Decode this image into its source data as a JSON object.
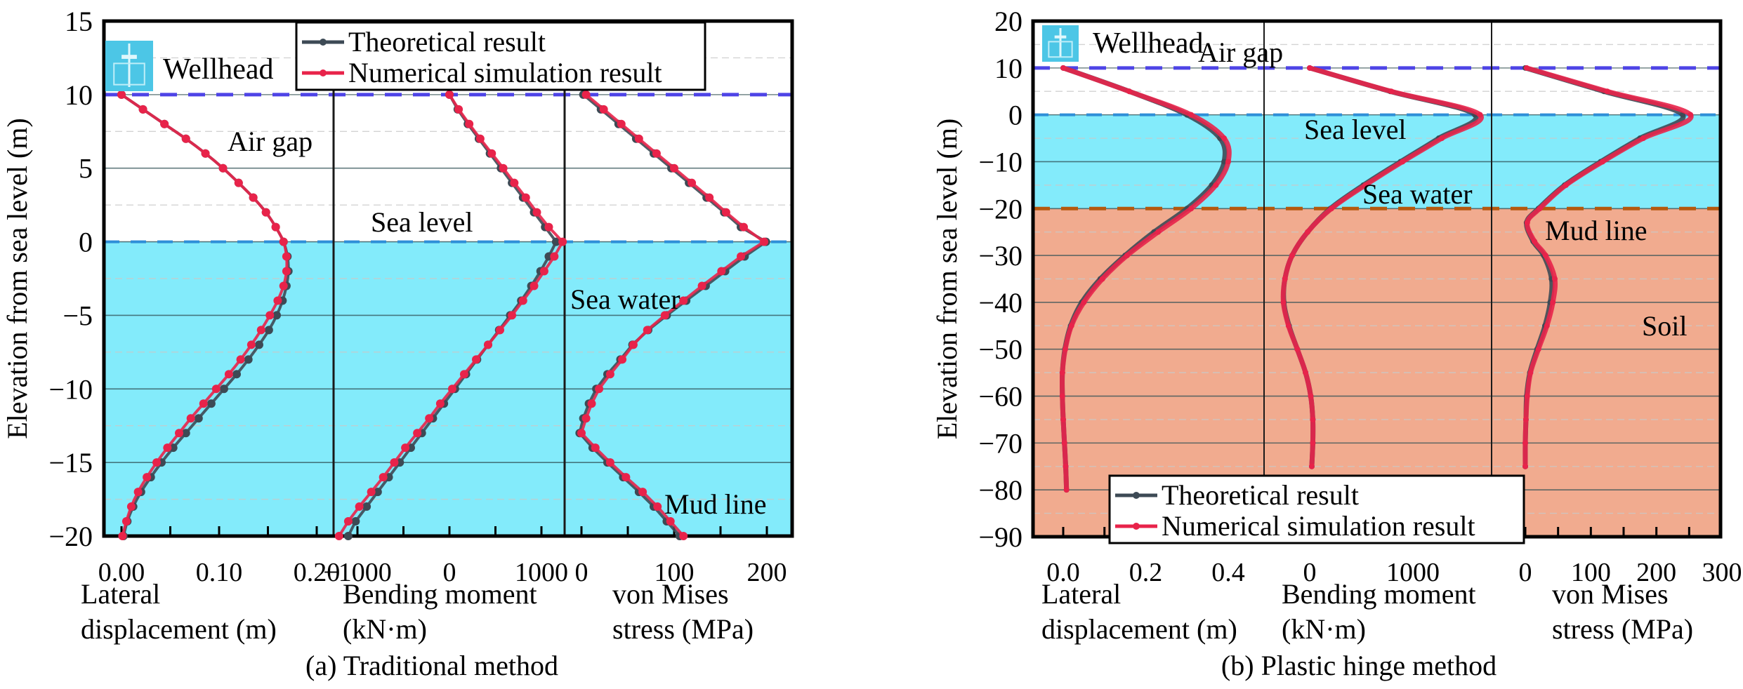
{
  "figure": {
    "y_axis_title": "Elevation from sea level (m)"
  },
  "chart_data": [
    {
      "type": "line",
      "id": "a",
      "caption": "(a) Traditional method",
      "ylabel": "Elevation from sea level (m)",
      "ylim": [
        -20,
        15
      ],
      "yticks": [
        15,
        10,
        5,
        0,
        -5,
        -10,
        -15,
        -20
      ],
      "ytick_labels": [
        "15",
        "10",
        "5",
        "0",
        "−5",
        "−10",
        "−15",
        "−20"
      ],
      "grid": true,
      "zones": {
        "wellhead_elevation": 10,
        "sea_level": 0,
        "mud_line": -20
      },
      "annotations": [
        "Wellhead",
        "Air gap",
        "Sea level",
        "Sea water",
        "Mud line"
      ],
      "legend": {
        "placement": "top-center",
        "entries": [
          "Theoretical result",
          "Numerical simulation result"
        ]
      },
      "subplots": [
        {
          "name": "lateral-displacement",
          "xlabel_line1": "Lateral",
          "xlabel_line2": "displacement (m)",
          "xlim": [
            -0.01,
            0.22
          ],
          "xticks": [
            0.0,
            0.1,
            0.2
          ],
          "xtick_labels": [
            "0.00",
            "0.10",
            "0.20"
          ],
          "y": [
            10,
            9,
            8,
            7,
            6,
            5,
            4,
            3,
            2,
            1,
            0,
            -1,
            -2,
            -3,
            -4,
            -5,
            -6,
            -7,
            -8,
            -9,
            -10,
            -11,
            -12,
            -13,
            -14,
            -15,
            -16,
            -17,
            -18,
            -19,
            -20
          ],
          "series": [
            {
              "name": "Theoretical result",
              "values": [
                0.0,
                0.022,
                0.044,
                0.066,
                0.086,
                0.104,
                0.12,
                0.135,
                0.148,
                0.158,
                0.166,
                0.17,
                0.171,
                0.169,
                0.165,
                0.159,
                0.151,
                0.141,
                0.13,
                0.118,
                0.105,
                0.092,
                0.079,
                0.066,
                0.053,
                0.041,
                0.03,
                0.02,
                0.012,
                0.006,
                0.002
              ]
            },
            {
              "name": "Numerical simulation result",
              "values": [
                0.0,
                0.022,
                0.044,
                0.066,
                0.086,
                0.104,
                0.12,
                0.135,
                0.148,
                0.158,
                0.166,
                0.169,
                0.169,
                0.166,
                0.16,
                0.152,
                0.143,
                0.133,
                0.122,
                0.11,
                0.097,
                0.084,
                0.071,
                0.059,
                0.047,
                0.036,
                0.026,
                0.017,
                0.01,
                0.005,
                0.001
              ]
            }
          ]
        },
        {
          "name": "bending-moment",
          "xlabel_line1": "Bending moment",
          "xlabel_line2": "(kN·m)",
          "xlim": [
            -1300,
            1500
          ],
          "xticks": [
            -1000,
            0,
            1000
          ],
          "xtick_labels": [
            "−1000",
            "0",
            "1000"
          ],
          "y": [
            10,
            9,
            8,
            7,
            6,
            5,
            4,
            3,
            2,
            1,
            0,
            -1,
            -2,
            -3,
            -4,
            -5,
            -6,
            -7,
            -8,
            -9,
            -10,
            -11,
            -12,
            -13,
            -14,
            -15,
            -16,
            -17,
            -18,
            -19,
            -20
          ],
          "series": [
            {
              "name": "Theoretical result",
              "values": [
                0,
                90,
                200,
                320,
                440,
                560,
                680,
                800,
                920,
                1040,
                1160,
                1080,
                990,
                890,
                780,
                660,
                540,
                420,
                300,
                180,
                60,
                -60,
                -180,
                -300,
                -420,
                -540,
                -660,
                -780,
                -900,
                -1020,
                -1100
              ]
            },
            {
              "name": "Numerical simulation result",
              "values": [
                0,
                100,
                215,
                335,
                460,
                585,
                705,
                830,
                950,
                1080,
                1230,
                1140,
                1030,
                920,
                800,
                680,
                550,
                420,
                290,
                160,
                30,
                -100,
                -220,
                -350,
                -480,
                -600,
                -720,
                -850,
                -980,
                -1100,
                -1200
              ]
            }
          ]
        },
        {
          "name": "von-mises-stress",
          "xlabel_line1": "von Mises",
          "xlabel_line2": "stress (MPa)",
          "xlim": [
            -5,
            225
          ],
          "xticks": [
            0,
            100,
            200
          ],
          "xtick_labels": [
            "0",
            "100",
            "200"
          ],
          "y": [
            10,
            9,
            8,
            7,
            6,
            5,
            4,
            3,
            2,
            1,
            0,
            -1,
            -2,
            -3,
            -4,
            -5,
            -6,
            -7,
            -8,
            -9,
            -10,
            -11,
            -12,
            -13,
            -14,
            -15,
            -16,
            -17,
            -18,
            -19,
            -20
          ],
          "series": [
            {
              "name": "Theoretical result",
              "values": [
                2,
                21,
                40,
                59,
                78,
                97,
                116,
                135,
                154,
                172,
                199,
                176,
                155,
                134,
                113,
                92,
                72,
                55,
                42,
                28,
                16,
                8,
                2,
                -2,
                12,
                28,
                45,
                62,
                78,
                92,
                106
              ]
            },
            {
              "name": "Numerical simulation result",
              "values": [
                5,
                24,
                43,
                62,
                81,
                100,
                119,
                138,
                156,
                175,
                197,
                172,
                151,
                130,
                110,
                90,
                71,
                56,
                44,
                31,
                19,
                11,
                5,
                0,
                15,
                31,
                48,
                66,
                82,
                96,
                110
              ]
            }
          ]
        }
      ]
    },
    {
      "type": "line",
      "id": "b",
      "caption": "(b) Plastic hinge method",
      "ylabel": "Elevation from sea level (m)",
      "ylim": [
        -90,
        20
      ],
      "yticks": [
        20,
        10,
        0,
        -10,
        -20,
        -30,
        -40,
        -50,
        -60,
        -70,
        -80,
        -90
      ],
      "ytick_labels": [
        "20",
        "10",
        "0",
        "−10",
        "−20",
        "−30",
        "−40",
        "−50",
        "−60",
        "−70",
        "−80",
        "−90"
      ],
      "grid": true,
      "zones": {
        "wellhead_elevation": 10,
        "sea_level": 0,
        "mud_line": -20,
        "soil_bottom": -90
      },
      "annotations": [
        "Wellhead",
        "Air gap",
        "Sea level",
        "Sea water",
        "Mud line",
        "Soil"
      ],
      "legend": {
        "placement": "bottom-left",
        "entries": [
          "Theoretical result",
          "Numerical simulation result"
        ]
      },
      "subplots": [
        {
          "name": "lateral-displacement",
          "xlabel_line1": "Lateral",
          "xlabel_line2": "displacement (m)",
          "xlim": [
            -0.07,
            0.52
          ],
          "xticks": [
            0.0,
            0.2,
            0.4
          ],
          "xtick_labels": [
            "0.0",
            "0.2",
            "0.4"
          ],
          "y": [
            10,
            5,
            0,
            -5,
            -10,
            -15,
            -20,
            -25,
            -30,
            -35,
            -40,
            -45,
            -50,
            -55,
            -60,
            -65,
            -70,
            -75,
            -80
          ],
          "series": [
            {
              "name": "Theoretical result",
              "values": [
                0.0,
                0.16,
                0.3,
                0.38,
                0.39,
                0.36,
                0.3,
                0.22,
                0.15,
                0.09,
                0.045,
                0.018,
                0.004,
                -0.002,
                -0.002,
                0.0,
                0.003,
                0.006,
                0.008
              ]
            },
            {
              "name": "Numerical simulation result",
              "values": [
                0.0,
                0.16,
                0.31,
                0.39,
                0.4,
                0.37,
                0.31,
                0.23,
                0.155,
                0.095,
                0.05,
                0.02,
                0.005,
                -0.002,
                -0.002,
                0.0,
                0.003,
                0.006,
                0.008
              ]
            }
          ]
        },
        {
          "name": "bending-moment",
          "xlabel_line1": "Bending moment",
          "xlabel_line2": "(kN·m)",
          "xlim": [
            -460,
            2100
          ],
          "xticks": [
            0,
            1000
          ],
          "xtick_labels": [
            "0",
            "1000"
          ],
          "y": [
            10,
            5,
            0,
            -5,
            -10,
            -15,
            -20,
            -25,
            -30,
            -35,
            -40,
            -45,
            -50,
            -55,
            -60,
            -65,
            -70,
            -75
          ],
          "series": [
            {
              "name": "Theoretical result",
              "values": [
                0,
                780,
                1600,
                1250,
                880,
                520,
                200,
                -20,
                -170,
                -240,
                -250,
                -200,
                -120,
                -40,
                10,
                30,
                30,
                20
              ]
            },
            {
              "name": "Numerical simulation result",
              "values": [
                0,
                790,
                1650,
                1280,
                900,
                540,
                210,
                -20,
                -170,
                -240,
                -255,
                -205,
                -120,
                -40,
                10,
                30,
                30,
                20
              ]
            }
          ]
        },
        {
          "name": "von-mises-stress",
          "xlabel_line1": "von Mises",
          "xlabel_line2": "stress (MPa)",
          "xlim": [
            -20,
            300
          ],
          "xticks": [
            0,
            100,
            200,
            300
          ],
          "xtick_labels": [
            "0",
            "100",
            "200",
            "300"
          ],
          "y": [
            10,
            5,
            0,
            -5,
            -10,
            -15,
            -20,
            -23,
            -27,
            -30,
            -35,
            -40,
            -45,
            -50,
            -55,
            -60,
            -65,
            -70,
            -75
          ],
          "series": [
            {
              "name": "Theoretical result",
              "values": [
                0,
                120,
                240,
                175,
                115,
                60,
                20,
                2,
                12,
                28,
                40,
                38,
                30,
                18,
                7,
                2,
                1,
                0,
                0
              ]
            },
            {
              "name": "Numerical simulation result",
              "values": [
                2,
                125,
                252,
                180,
                118,
                62,
                22,
                3,
                14,
                31,
                45,
                42,
                33,
                20,
                8,
                3,
                1,
                0,
                0
              ]
            }
          ]
        }
      ]
    }
  ],
  "colors": {
    "theoretical": "#3d4a55",
    "numerical": "#e8234a",
    "sea_water": "#83ebfb",
    "soil": "#f1ab8f",
    "wellhead_line": "#4e44e6",
    "sea_level_line": "#2e8fd8",
    "mud_line": "#b5590e",
    "icon": "#4cc6e6"
  }
}
